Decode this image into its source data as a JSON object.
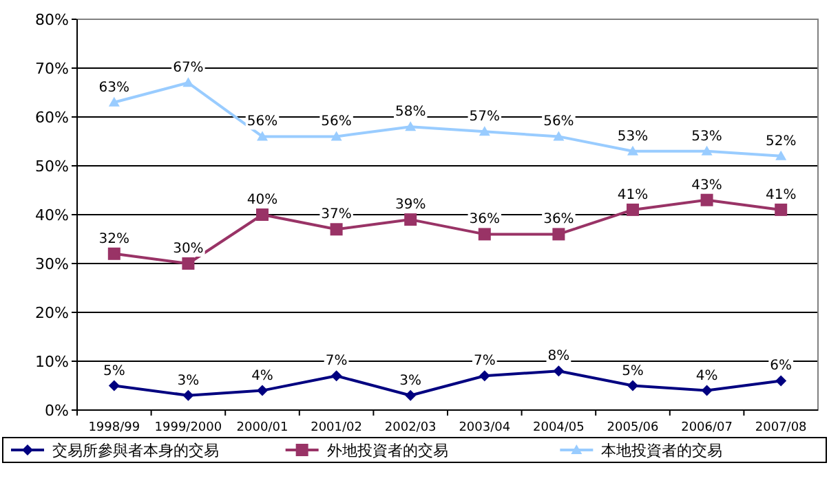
{
  "chart_data": {
    "type": "line",
    "categories": [
      "1998/99",
      "1999/2000",
      "2000/01",
      "2001/02",
      "2002/03",
      "2003/04",
      "2004/05",
      "2005/06",
      "2006/07",
      "2007/08"
    ],
    "series": [
      {
        "name": "交易所參與者本身的交易",
        "color": "#000080",
        "marker": "diamond",
        "values": [
          5,
          3,
          4,
          7,
          3,
          7,
          8,
          5,
          4,
          6
        ],
        "value_labels": [
          "5%",
          "3%",
          "4%",
          "7%",
          "3%",
          "7%",
          "8%",
          "5%",
          "4%",
          "6%"
        ]
      },
      {
        "name": "外地投資者的交易",
        "color": "#993366",
        "marker": "square",
        "values": [
          32,
          30,
          40,
          37,
          39,
          36,
          36,
          41,
          43,
          41
        ],
        "value_labels": [
          "32%",
          "30%",
          "40%",
          "37%",
          "39%",
          "36%",
          "36%",
          "41%",
          "43%",
          "41%"
        ]
      },
      {
        "name": "本地投資者的交易",
        "color": "#99ccff",
        "marker": "triangle",
        "values": [
          63,
          67,
          56,
          56,
          58,
          57,
          56,
          53,
          53,
          52
        ],
        "value_labels": [
          "63%",
          "67%",
          "56%",
          "56%",
          "58%",
          "57%",
          "56%",
          "53%",
          "53%",
          "52%"
        ]
      }
    ],
    "ylim": [
      0,
      80
    ],
    "yticks": [
      {
        "value": 0,
        "label": "0%"
      },
      {
        "value": 10,
        "label": "10%"
      },
      {
        "value": 20,
        "label": "20%"
      },
      {
        "value": 30,
        "label": "30%"
      },
      {
        "value": 40,
        "label": "40%"
      },
      {
        "value": 50,
        "label": "50%"
      },
      {
        "value": 60,
        "label": "60%"
      },
      {
        "value": 70,
        "label": "70%"
      },
      {
        "value": 80,
        "label": "80%"
      }
    ],
    "grid": "y",
    "legend": "bottom"
  }
}
